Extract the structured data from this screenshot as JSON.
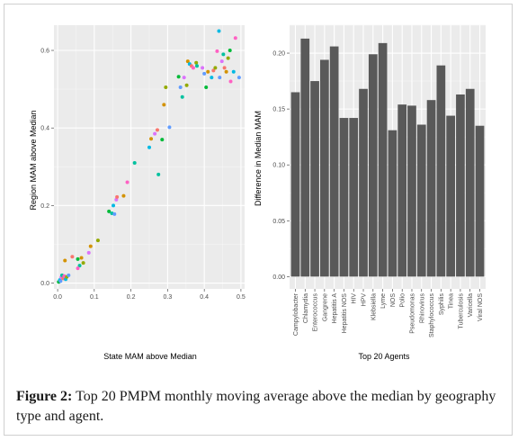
{
  "chart_data": [
    {
      "type": "scatter",
      "xlabel": "State MAM above Median",
      "ylabel": "Region MAM above Median",
      "xlim": [
        -0.01,
        0.51
      ],
      "ylim": [
        -0.015,
        0.665
      ],
      "x_ticks": [
        "0.0",
        "0.1",
        "0.2",
        "0.3",
        "0.4",
        "0.5"
      ],
      "y_ticks": [
        "0.0",
        "0.2",
        "0.4",
        "0.6"
      ],
      "grid": true,
      "colors": [
        "#F8766D",
        "#D39200",
        "#93AA00",
        "#00BA38",
        "#00C19F",
        "#00B9E3",
        "#619CFF",
        "#DB72FB",
        "#FF61C3"
      ],
      "points": [
        {
          "x": 0.003,
          "y": 0.003,
          "c": 3
        },
        {
          "x": 0.006,
          "y": 0.008,
          "c": 5
        },
        {
          "x": 0.008,
          "y": 0.005,
          "c": 6
        },
        {
          "x": 0.01,
          "y": 0.015,
          "c": 7
        },
        {
          "x": 0.012,
          "y": 0.02,
          "c": 4
        },
        {
          "x": 0.015,
          "y": 0.012,
          "c": 0
        },
        {
          "x": 0.018,
          "y": 0.018,
          "c": 8
        },
        {
          "x": 0.022,
          "y": 0.01,
          "c": 5
        },
        {
          "x": 0.025,
          "y": 0.016,
          "c": 2
        },
        {
          "x": 0.03,
          "y": 0.02,
          "c": 6
        },
        {
          "x": 0.02,
          "y": 0.058,
          "c": 1
        },
        {
          "x": 0.04,
          "y": 0.068,
          "c": 0
        },
        {
          "x": 0.055,
          "y": 0.062,
          "c": 3
        },
        {
          "x": 0.065,
          "y": 0.065,
          "c": 1
        },
        {
          "x": 0.06,
          "y": 0.045,
          "c": 4
        },
        {
          "x": 0.055,
          "y": 0.038,
          "c": 8
        },
        {
          "x": 0.07,
          "y": 0.052,
          "c": 2
        },
        {
          "x": 0.085,
          "y": 0.078,
          "c": 7
        },
        {
          "x": 0.09,
          "y": 0.095,
          "c": 1
        },
        {
          "x": 0.11,
          "y": 0.11,
          "c": 2
        },
        {
          "x": 0.14,
          "y": 0.185,
          "c": 3
        },
        {
          "x": 0.148,
          "y": 0.18,
          "c": 4
        },
        {
          "x": 0.152,
          "y": 0.2,
          "c": 5
        },
        {
          "x": 0.155,
          "y": 0.178,
          "c": 6
        },
        {
          "x": 0.16,
          "y": 0.215,
          "c": 7
        },
        {
          "x": 0.162,
          "y": 0.222,
          "c": 0
        },
        {
          "x": 0.18,
          "y": 0.225,
          "c": 1
        },
        {
          "x": 0.19,
          "y": 0.26,
          "c": 8
        },
        {
          "x": 0.21,
          "y": 0.31,
          "c": 4
        },
        {
          "x": 0.25,
          "y": 0.35,
          "c": 5
        },
        {
          "x": 0.255,
          "y": 0.372,
          "c": 1
        },
        {
          "x": 0.265,
          "y": 0.385,
          "c": 7
        },
        {
          "x": 0.272,
          "y": 0.395,
          "c": 0
        },
        {
          "x": 0.275,
          "y": 0.28,
          "c": 4
        },
        {
          "x": 0.285,
          "y": 0.37,
          "c": 3
        },
        {
          "x": 0.29,
          "y": 0.46,
          "c": 1
        },
        {
          "x": 0.295,
          "y": 0.505,
          "c": 2
        },
        {
          "x": 0.305,
          "y": 0.402,
          "c": 6
        },
        {
          "x": 0.33,
          "y": 0.532,
          "c": 3
        },
        {
          "x": 0.335,
          "y": 0.505,
          "c": 6
        },
        {
          "x": 0.34,
          "y": 0.48,
          "c": 4
        },
        {
          "x": 0.345,
          "y": 0.53,
          "c": 7
        },
        {
          "x": 0.352,
          "y": 0.51,
          "c": 2
        },
        {
          "x": 0.355,
          "y": 0.572,
          "c": 1
        },
        {
          "x": 0.36,
          "y": 0.565,
          "c": 5
        },
        {
          "x": 0.365,
          "y": 0.56,
          "c": 0
        },
        {
          "x": 0.37,
          "y": 0.555,
          "c": 8
        },
        {
          "x": 0.378,
          "y": 0.568,
          "c": 2
        },
        {
          "x": 0.38,
          "y": 0.56,
          "c": 4
        },
        {
          "x": 0.395,
          "y": 0.555,
          "c": 7
        },
        {
          "x": 0.4,
          "y": 0.54,
          "c": 6
        },
        {
          "x": 0.405,
          "y": 0.505,
          "c": 3
        },
        {
          "x": 0.41,
          "y": 0.545,
          "c": 1
        },
        {
          "x": 0.42,
          "y": 0.53,
          "c": 5
        },
        {
          "x": 0.425,
          "y": 0.548,
          "c": 0
        },
        {
          "x": 0.43,
          "y": 0.555,
          "c": 2
        },
        {
          "x": 0.435,
          "y": 0.598,
          "c": 8
        },
        {
          "x": 0.44,
          "y": 0.65,
          "c": 5
        },
        {
          "x": 0.442,
          "y": 0.53,
          "c": 6
        },
        {
          "x": 0.448,
          "y": 0.572,
          "c": 7
        },
        {
          "x": 0.452,
          "y": 0.59,
          "c": 4
        },
        {
          "x": 0.455,
          "y": 0.555,
          "c": 0
        },
        {
          "x": 0.46,
          "y": 0.545,
          "c": 1
        },
        {
          "x": 0.465,
          "y": 0.58,
          "c": 2
        },
        {
          "x": 0.47,
          "y": 0.6,
          "c": 3
        },
        {
          "x": 0.472,
          "y": 0.52,
          "c": 8
        },
        {
          "x": 0.48,
          "y": 0.545,
          "c": 5
        },
        {
          "x": 0.485,
          "y": 0.632,
          "c": 8
        },
        {
          "x": 0.495,
          "y": 0.53,
          "c": 6
        }
      ]
    },
    {
      "type": "bar",
      "xlabel": "Top 20 Agents",
      "ylabel": "Difference in Median MAM",
      "ylim": [
        -0.011,
        0.225
      ],
      "y_ticks": [
        "0.00",
        "0.05",
        "0.10",
        "0.15",
        "0.20"
      ],
      "grid": true,
      "bar_color": "#595959",
      "categories": [
        "Campylobacter",
        "Chlamydia",
        "Enterococcus",
        "Gangrene",
        "Hepatitis A",
        "Hepatitis NOS",
        "HIV",
        "HPV",
        "Klebsiella",
        "Lyme",
        "NOS",
        "Polio",
        "Pseudomonas",
        "Rhinovirus",
        "Staphylococcus",
        "Syphilis",
        "Tinea",
        "Tuberculosis",
        "Varicella",
        "Viral NOS"
      ],
      "values": [
        0.165,
        0.213,
        0.175,
        0.194,
        0.206,
        0.142,
        0.142,
        0.168,
        0.199,
        0.209,
        0.131,
        0.154,
        0.153,
        0.136,
        0.158,
        0.189,
        0.144,
        0.163,
        0.168,
        0.135
      ]
    }
  ],
  "caption": {
    "label": "Figure 2:",
    "text": "Top 20 PMPM monthly moving average above the median by geography type and agent."
  }
}
